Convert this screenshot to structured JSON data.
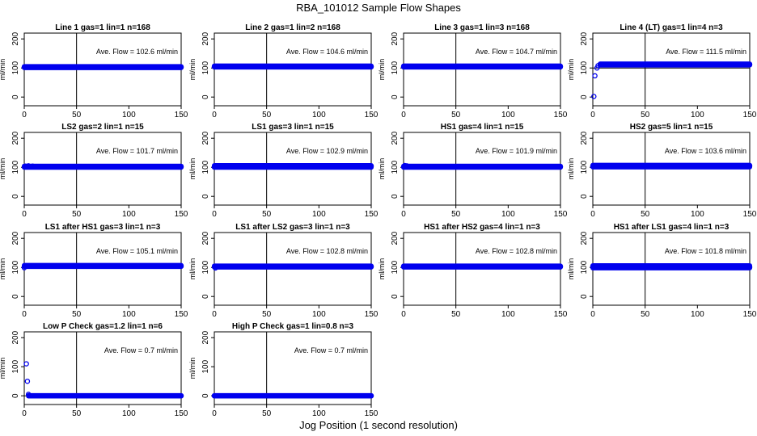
{
  "figure": {
    "title": "RBA_101012  Sample Flow Shapes",
    "xlabel": "Jog Position (1 second resolution)",
    "colors": {
      "points": "#0000ee",
      "axes": "#000000",
      "background": "#ffffff"
    }
  },
  "chart_data": [
    {
      "type": "scatter",
      "title": "Line 1 gas=1 lin=1 n=168",
      "ylabel": "ml/min",
      "xlim": [
        0,
        150
      ],
      "ylim": [
        -30,
        220
      ],
      "xticks": [
        0,
        50,
        100,
        150
      ],
      "yticks": [
        0,
        100,
        200
      ],
      "vline": 50,
      "hline": 100,
      "annotation": "Ave. Flow =  102.6  ml/min",
      "series": [
        {
          "points": [
            [
              0,
              103
            ],
            [
              3,
              103
            ],
            [
              150,
              103
            ]
          ],
          "band": {
            "x0": 0,
            "x1": 150,
            "y": 103,
            "spread": 2
          }
        }
      ]
    },
    {
      "type": "scatter",
      "title": "Line 2 gas=1 lin=2 n=168",
      "ylabel": "ml/min",
      "xlim": [
        0,
        150
      ],
      "ylim": [
        -30,
        220
      ],
      "xticks": [
        0,
        50,
        100,
        150
      ],
      "yticks": [
        0,
        100,
        200
      ],
      "vline": 50,
      "hline": 100,
      "annotation": "Ave. Flow =  104.6  ml/min",
      "series": [
        {
          "points": [
            [
              0,
              105
            ],
            [
              150,
              105
            ]
          ],
          "band": {
            "x0": 0,
            "x1": 150,
            "y": 105,
            "spread": 2
          }
        }
      ]
    },
    {
      "type": "scatter",
      "title": "Line 3 gas=1 lin=3 n=168",
      "ylabel": "ml/min",
      "xlim": [
        0,
        150
      ],
      "ylim": [
        -30,
        220
      ],
      "xticks": [
        0,
        50,
        100,
        150
      ],
      "yticks": [
        0,
        100,
        200
      ],
      "vline": 50,
      "hline": 100,
      "annotation": "Ave. Flow =  104.7  ml/min",
      "series": [
        {
          "points": [
            [
              0,
              105
            ],
            [
              150,
              105
            ]
          ],
          "band": {
            "x0": 0,
            "x1": 150,
            "y": 105,
            "spread": 2
          }
        }
      ]
    },
    {
      "type": "scatter",
      "title": "Line 4 (LT) gas=1 lin=4 n=3",
      "ylabel": "ml/min",
      "xlim": [
        0,
        150
      ],
      "ylim": [
        -30,
        220
      ],
      "xticks": [
        0,
        50,
        100,
        150
      ],
      "yticks": [
        0,
        100,
        200
      ],
      "vline": 50,
      "hline": 100,
      "annotation": "Ave. Flow =  111.5  ml/min",
      "series": [
        {
          "points": [
            [
              1,
              2
            ],
            [
              2,
              73
            ],
            [
              4,
              100
            ],
            [
              5,
              108
            ],
            [
              7,
              112
            ],
            [
              150,
              112
            ]
          ],
          "band": {
            "x0": 7,
            "x1": 150,
            "y": 112,
            "spread": 2
          }
        }
      ]
    },
    {
      "type": "scatter",
      "title": "LS2 gas=2 lin=1 n=15",
      "ylabel": "ml/min",
      "xlim": [
        0,
        150
      ],
      "ylim": [
        -30,
        220
      ],
      "xticks": [
        0,
        50,
        100,
        150
      ],
      "yticks": [
        0,
        100,
        200
      ],
      "vline": 50,
      "hline": 100,
      "annotation": "Ave. Flow =  101.7  ml/min",
      "series": [
        {
          "points": [
            [
              1,
              104
            ],
            [
              4,
              105
            ],
            [
              8,
              104
            ],
            [
              150,
              102
            ]
          ],
          "band": {
            "x0": 0,
            "x1": 150,
            "y": 102,
            "spread": 2
          }
        }
      ]
    },
    {
      "type": "scatter",
      "title": "LS1 gas=3 lin=1 n=15",
      "ylabel": "ml/min",
      "xlim": [
        0,
        150
      ],
      "ylim": [
        -30,
        220
      ],
      "xticks": [
        0,
        50,
        100,
        150
      ],
      "yticks": [
        0,
        100,
        200
      ],
      "vline": 50,
      "hline": 100,
      "annotation": "Ave. Flow =  102.9  ml/min",
      "series": [
        {
          "points": [
            [
              0,
              101
            ],
            [
              150,
              104
            ]
          ],
          "band": {
            "x0": 0,
            "x1": 150,
            "y": 103,
            "spread": 3
          }
        }
      ]
    },
    {
      "type": "scatter",
      "title": "HS1 gas=4 lin=1 n=15",
      "ylabel": "ml/min",
      "xlim": [
        0,
        150
      ],
      "ylim": [
        -30,
        220
      ],
      "xticks": [
        0,
        50,
        100,
        150
      ],
      "yticks": [
        0,
        100,
        200
      ],
      "vline": 50,
      "hline": 100,
      "annotation": "Ave. Flow =  101.9  ml/min",
      "series": [
        {
          "points": [
            [
              1,
              106
            ],
            [
              3,
              105
            ],
            [
              150,
              102
            ]
          ],
          "band": {
            "x0": 0,
            "x1": 150,
            "y": 102,
            "spread": 2
          }
        }
      ]
    },
    {
      "type": "scatter",
      "title": "HS2 gas=5 lin=1 n=15",
      "ylabel": "ml/min",
      "xlim": [
        0,
        150
      ],
      "ylim": [
        -30,
        220
      ],
      "xticks": [
        0,
        50,
        100,
        150
      ],
      "yticks": [
        0,
        100,
        200
      ],
      "vline": 50,
      "hline": 100,
      "annotation": "Ave. Flow =  103.6  ml/min",
      "series": [
        {
          "points": [
            [
              0,
              104
            ],
            [
              150,
              105
            ]
          ],
          "band": {
            "x0": 0,
            "x1": 150,
            "y": 104,
            "spread": 3
          }
        }
      ]
    },
    {
      "type": "scatter",
      "title": "LS1 after HS1 gas=3 lin=1 n=3",
      "ylabel": "ml/min",
      "xlim": [
        0,
        150
      ],
      "ylim": [
        -30,
        220
      ],
      "xticks": [
        0,
        50,
        100,
        150
      ],
      "yticks": [
        0,
        100,
        200
      ],
      "vline": 50,
      "hline": 100,
      "annotation": "Ave. Flow =  105.1  ml/min",
      "series": [
        {
          "points": [
            [
              0,
              99
            ],
            [
              10,
              104
            ],
            [
              150,
              105
            ]
          ],
          "band": {
            "x0": 0,
            "x1": 150,
            "y": 105,
            "spread": 2
          }
        }
      ]
    },
    {
      "type": "scatter",
      "title": "LS1 after LS2 gas=3 lin=1 n=3",
      "ylabel": "ml/min",
      "xlim": [
        0,
        150
      ],
      "ylim": [
        -30,
        220
      ],
      "xticks": [
        0,
        50,
        100,
        150
      ],
      "yticks": [
        0,
        100,
        200
      ],
      "vline": 50,
      "hline": 100,
      "annotation": "Ave. Flow =  102.8  ml/min",
      "series": [
        {
          "points": [
            [
              1,
              98
            ],
            [
              150,
              103
            ]
          ],
          "band": {
            "x0": 0,
            "x1": 150,
            "y": 103,
            "spread": 2
          }
        }
      ]
    },
    {
      "type": "scatter",
      "title": "HS1 after HS2 gas=4 lin=1 n=3",
      "ylabel": "ml/min",
      "xlim": [
        0,
        150
      ],
      "ylim": [
        -30,
        220
      ],
      "xticks": [
        0,
        50,
        100,
        150
      ],
      "yticks": [
        0,
        100,
        200
      ],
      "vline": 50,
      "hline": 100,
      "annotation": "Ave. Flow =  102.8  ml/min",
      "series": [
        {
          "points": [
            [
              0,
              103
            ],
            [
              150,
              103
            ]
          ],
          "band": {
            "x0": 0,
            "x1": 150,
            "y": 103,
            "spread": 2
          }
        }
      ]
    },
    {
      "type": "scatter",
      "title": "HS1 after LS1 gas=4 lin=1 n=3",
      "ylabel": "ml/min",
      "xlim": [
        0,
        150
      ],
      "ylim": [
        -30,
        220
      ],
      "xticks": [
        0,
        50,
        100,
        150
      ],
      "yticks": [
        0,
        100,
        200
      ],
      "vline": 50,
      "hline": 100,
      "annotation": "Ave. Flow =  101.8  ml/min",
      "series": [
        {
          "points": [
            [
              0,
              103
            ],
            [
              150,
              101
            ]
          ],
          "band": {
            "x0": 0,
            "x1": 150,
            "y": 102,
            "spread": 4
          }
        }
      ]
    },
    {
      "type": "scatter",
      "title": "Low P Check gas=1.2 lin=1 n=6",
      "ylabel": "ml/min",
      "xlim": [
        0,
        150
      ],
      "ylim": [
        -30,
        220
      ],
      "xticks": [
        0,
        50,
        100,
        150
      ],
      "yticks": [
        0,
        100,
        200
      ],
      "vline": 50,
      "hline": 0,
      "annotation": "Ave. Flow =  0.7  ml/min",
      "series": [
        {
          "points": [
            [
              2,
              110
            ],
            [
              3,
              50
            ],
            [
              4,
              5
            ],
            [
              150,
              0
            ]
          ],
          "band": {
            "x0": 4,
            "x1": 150,
            "y": 0,
            "spread": 1
          }
        }
      ]
    },
    {
      "type": "scatter",
      "title": "High P Check gas=1 lin=0.8 n=3",
      "ylabel": "ml/min",
      "xlim": [
        0,
        150
      ],
      "ylim": [
        -30,
        220
      ],
      "xticks": [
        0,
        50,
        100,
        150
      ],
      "yticks": [
        0,
        100,
        200
      ],
      "vline": 50,
      "hline": 0,
      "annotation": "Ave. Flow =  0.7  ml/min",
      "series": [
        {
          "points": [
            [
              0,
              0
            ],
            [
              150,
              0
            ]
          ],
          "band": {
            "x0": 0,
            "x1": 150,
            "y": 0,
            "spread": 1
          }
        }
      ]
    }
  ]
}
